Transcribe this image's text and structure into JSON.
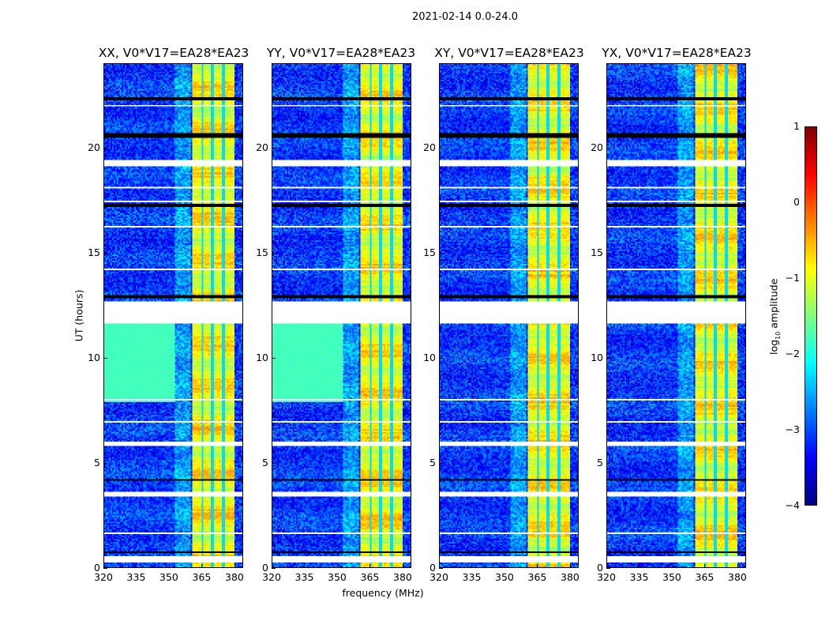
{
  "chart_data": {
    "type": "heatmap",
    "title": "2021-02-14 0.0-24.0",
    "panels": [
      {
        "title": "XX, V0*V17=EA28*EA23",
        "low_freq_plateau": true
      },
      {
        "title": "YY, V0*V17=EA28*EA23",
        "low_freq_plateau": true
      },
      {
        "title": "XY, V0*V17=EA28*EA23",
        "low_freq_plateau": false
      },
      {
        "title": "YX, V0*V17=EA28*EA23",
        "low_freq_plateau": false
      }
    ],
    "xlabel": "frequency (MHz)",
    "ylabel": "UT (hours)",
    "xlim": [
      320,
      384
    ],
    "ylim": [
      0,
      24
    ],
    "xticks": [
      "320",
      "335",
      "350",
      "365",
      "380"
    ],
    "xtick_values": [
      320,
      335,
      350,
      365,
      380
    ],
    "yticks": [
      "0",
      "5",
      "10",
      "15",
      "20"
    ],
    "ytick_values": [
      0,
      5,
      10,
      15,
      20
    ],
    "colormap": "jet",
    "colorbar": {
      "label_prefix": "log",
      "label_sub": "10",
      "label_suffix": " amplitude",
      "range": [
        -4,
        1
      ],
      "ticks": [
        "1",
        "0",
        "−1",
        "−2",
        "−3",
        "−4"
      ],
      "tick_values": [
        1,
        0,
        -1,
        -2,
        -3,
        -4
      ]
    },
    "background_log_amp": -3.1,
    "rfi_band_MHz": [
      360.4,
      380.0
    ],
    "rfi_band_log_amp": -0.9,
    "band_gaps_MHz": [
      365.5,
      370.2,
      375.2
    ],
    "plateau": {
      "hours": [
        7.9,
        11.6
      ],
      "max_MHz": 353,
      "log_amp": -1.8
    },
    "flagged_hours": [
      [
        0.25,
        0.5
      ],
      [
        1.55,
        1.62
      ],
      [
        3.4,
        3.6
      ],
      [
        5.75,
        6.0
      ],
      [
        6.9,
        6.95
      ],
      [
        7.95,
        8.05
      ],
      [
        9.65,
        9.7
      ],
      [
        11.65,
        12.65
      ],
      [
        14.2,
        14.25
      ],
      [
        16.2,
        16.25
      ],
      [
        17.4,
        17.45
      ],
      [
        18.1,
        18.15
      ],
      [
        19.1,
        19.4
      ],
      [
        21.5,
        21.55
      ],
      [
        22.0,
        22.07
      ],
      [
        22.55,
        22.6
      ]
    ],
    "dark_rows_hours": [
      [
        0.65,
        0.72
      ],
      [
        4.1,
        4.2
      ],
      [
        5.0,
        5.05
      ],
      [
        12.8,
        12.95
      ],
      [
        17.2,
        17.35
      ],
      [
        18.5,
        18.55
      ],
      [
        20.5,
        20.7
      ],
      [
        22.3,
        22.45
      ]
    ]
  }
}
